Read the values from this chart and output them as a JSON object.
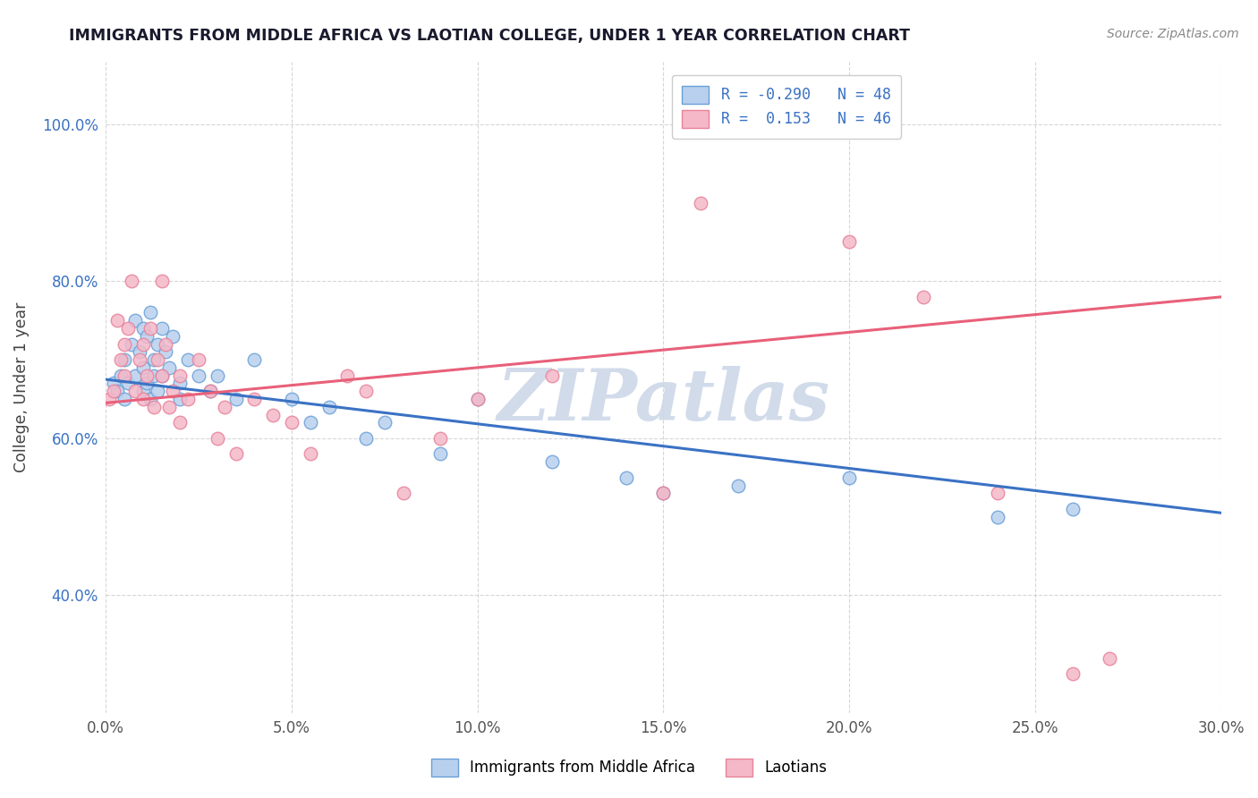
{
  "title": "IMMIGRANTS FROM MIDDLE AFRICA VS LAOTIAN COLLEGE, UNDER 1 YEAR CORRELATION CHART",
  "source": "Source: ZipAtlas.com",
  "ylabel": "College, Under 1 year",
  "x_tick_labels": [
    "0.0%",
    "5.0%",
    "10.0%",
    "15.0%",
    "20.0%",
    "25.0%",
    "30.0%"
  ],
  "x_tick_vals": [
    0.0,
    5.0,
    10.0,
    15.0,
    20.0,
    25.0,
    30.0
  ],
  "y_tick_labels": [
    "40.0%",
    "60.0%",
    "80.0%",
    "100.0%"
  ],
  "y_tick_vals": [
    40.0,
    60.0,
    80.0,
    100.0
  ],
  "xlim": [
    0.0,
    30.0
  ],
  "ylim": [
    25.0,
    108.0
  ],
  "blue_R": -0.29,
  "blue_N": 48,
  "pink_R": 0.153,
  "pink_N": 46,
  "blue_color": "#b8d0ed",
  "pink_color": "#f4b8c8",
  "blue_edge_color": "#6a9fd8",
  "pink_edge_color": "#e8829a",
  "blue_line_color": "#3a72c4",
  "pink_line_color": "#e8607a",
  "watermark_text": "ZIPatlas",
  "watermark_color": "#cdd8e8",
  "title_color": "#222222",
  "blue_scatter_x": [
    0.2,
    0.3,
    0.4,
    0.5,
    0.5,
    0.6,
    0.7,
    0.8,
    0.8,
    0.9,
    1.0,
    1.0,
    1.0,
    1.1,
    1.1,
    1.2,
    1.2,
    1.3,
    1.3,
    1.4,
    1.4,
    1.5,
    1.5,
    1.6,
    1.7,
    1.8,
    2.0,
    2.0,
    2.2,
    2.5,
    2.8,
    3.0,
    3.5,
    4.0,
    5.0,
    5.5,
    6.0,
    7.0,
    7.5,
    9.0,
    10.0,
    12.0,
    14.0,
    15.0,
    17.0,
    20.0,
    24.0,
    26.0
  ],
  "blue_scatter_y": [
    67.0,
    66.0,
    68.0,
    70.0,
    65.0,
    67.0,
    72.0,
    75.0,
    68.0,
    71.0,
    74.0,
    69.0,
    66.0,
    73.0,
    67.0,
    76.0,
    65.0,
    70.0,
    68.0,
    72.0,
    66.0,
    74.0,
    68.0,
    71.0,
    69.0,
    73.0,
    67.0,
    65.0,
    70.0,
    68.0,
    66.0,
    68.0,
    65.0,
    70.0,
    65.0,
    62.0,
    64.0,
    60.0,
    62.0,
    58.0,
    65.0,
    57.0,
    55.0,
    53.0,
    54.0,
    55.0,
    50.0,
    51.0
  ],
  "pink_scatter_x": [
    0.1,
    0.2,
    0.3,
    0.4,
    0.5,
    0.5,
    0.6,
    0.7,
    0.8,
    0.9,
    1.0,
    1.0,
    1.1,
    1.2,
    1.3,
    1.4,
    1.5,
    1.5,
    1.6,
    1.7,
    1.8,
    2.0,
    2.0,
    2.2,
    2.5,
    2.8,
    3.0,
    3.2,
    3.5,
    4.0,
    4.5,
    5.0,
    5.5,
    6.5,
    7.0,
    8.0,
    9.0,
    10.0,
    12.0,
    15.0,
    16.0,
    20.0,
    22.0,
    24.0,
    26.0,
    27.0
  ],
  "pink_scatter_y": [
    65.0,
    66.0,
    75.0,
    70.0,
    68.0,
    72.0,
    74.0,
    80.0,
    66.0,
    70.0,
    72.0,
    65.0,
    68.0,
    74.0,
    64.0,
    70.0,
    80.0,
    68.0,
    72.0,
    64.0,
    66.0,
    68.0,
    62.0,
    65.0,
    70.0,
    66.0,
    60.0,
    64.0,
    58.0,
    65.0,
    63.0,
    62.0,
    58.0,
    68.0,
    66.0,
    53.0,
    60.0,
    65.0,
    68.0,
    53.0,
    90.0,
    85.0,
    78.0,
    53.0,
    30.0,
    32.0
  ],
  "blue_trend_x0": 0.0,
  "blue_trend_y0": 67.5,
  "blue_trend_x1": 30.0,
  "blue_trend_y1": 50.5,
  "pink_trend_x0": 0.0,
  "pink_trend_y0": 64.5,
  "pink_trend_x1": 30.0,
  "pink_trend_y1": 78.0
}
